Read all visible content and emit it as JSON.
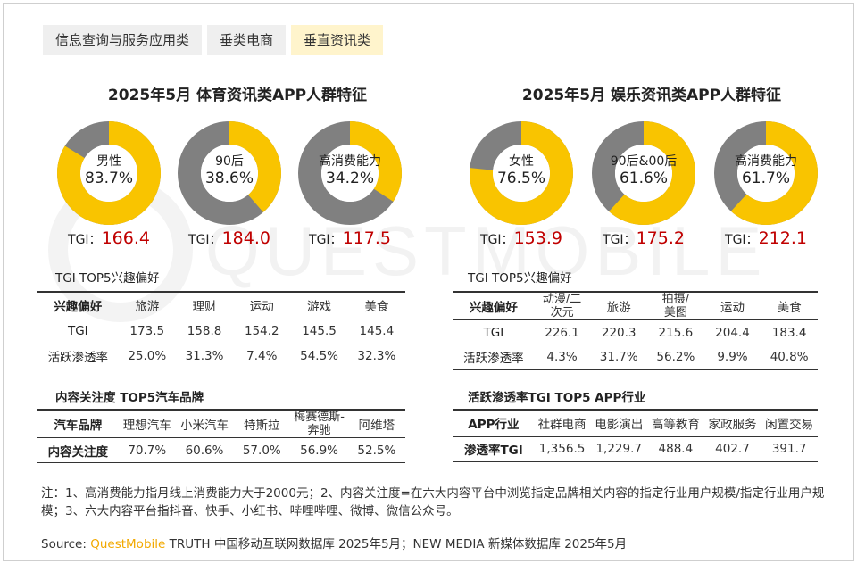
{
  "tabs": [
    "信息查询与服务应用类",
    "垂类电商",
    "垂直资讯类"
  ],
  "active_tab": 2,
  "colors": {
    "accent": "#f9c400",
    "grey": "#808080",
    "tgi_value": "#c00000",
    "brand": "#f2a900"
  },
  "watermark": "QUESTMOBILE",
  "chart_data": [
    {
      "type": "pie",
      "title": "2025年5月 体育资讯类APP人群特征",
      "donuts": [
        {
          "label": "男性",
          "value": 83.7,
          "value_label": "83.7%",
          "tgi_label": "TGI：",
          "tgi": "166.4"
        },
        {
          "label": "90后",
          "value": 38.6,
          "value_label": "38.6%",
          "tgi_label": "TGI：",
          "tgi": "184.0"
        },
        {
          "label": "高消费能力",
          "value": 34.2,
          "value_label": "34.2%",
          "tgi_label": "TGI：",
          "tgi": "117.5"
        }
      ]
    },
    {
      "type": "pie",
      "title": "2025年5月 娱乐资讯类APP人群特征",
      "donuts": [
        {
          "label": "女性",
          "value": 76.5,
          "value_label": "76.5%",
          "tgi_label": "TGI：",
          "tgi": "153.9"
        },
        {
          "label": "90后&00后",
          "value": 61.6,
          "value_label": "61.6%",
          "tgi_label": "TGI：",
          "tgi": "175.2"
        },
        {
          "label": "高消费能力",
          "value": 61.7,
          "value_label": "61.7%",
          "tgi_label": "TGI：",
          "tgi": "212.1"
        }
      ]
    },
    {
      "type": "table",
      "title": "TGI TOP5兴趣偏好",
      "header": [
        "兴趣偏好",
        "旅游",
        "理财",
        "运动",
        "游戏",
        "美食"
      ],
      "rows": [
        [
          "TGI",
          "173.5",
          "158.8",
          "154.2",
          "145.5",
          "145.4"
        ],
        [
          "活跃渗透率",
          "25.0%",
          "31.3%",
          "7.4%",
          "54.5%",
          "32.3%"
        ]
      ]
    },
    {
      "type": "table",
      "title": "内容关注度 TOP5汽车品牌",
      "header": [
        "汽车品牌",
        "理想汽车",
        "小米汽车",
        "特斯拉",
        "梅赛德斯-奔驰",
        "阿维塔"
      ],
      "rows": [
        [
          "内容关注度",
          "70.7%",
          "60.6%",
          "57.0%",
          "56.9%",
          "52.5%"
        ]
      ]
    },
    {
      "type": "table",
      "title": "TGI TOP5兴趣偏好",
      "header": [
        "兴趣偏好",
        "动漫/二次元",
        "旅游",
        "拍摄/美图",
        "运动",
        "美食"
      ],
      "rows": [
        [
          "TGI",
          "226.1",
          "220.3",
          "215.6",
          "204.4",
          "183.4"
        ],
        [
          "活跃渗透率",
          "4.3%",
          "31.7%",
          "56.2%",
          "9.9%",
          "40.8%"
        ]
      ]
    },
    {
      "type": "table",
      "title": "活跃渗透率TGI TOP5 APP行业",
      "header": [
        "APP行业",
        "社群电商",
        "电影演出",
        "高等教育",
        "家政服务",
        "闲置交易"
      ],
      "rows": [
        [
          "渗透率TGI",
          "1,356.5",
          "1,229.7",
          "488.4",
          "402.7",
          "391.7"
        ]
      ]
    }
  ],
  "left_tables": {
    "interest": {
      "title": "TGI TOP5兴趣偏好",
      "header": [
        "兴趣偏好",
        "旅游",
        "理财",
        "运动",
        "游戏",
        "美食"
      ],
      "rows": [
        [
          "TGI",
          "173.5",
          "158.8",
          "154.2",
          "145.5",
          "145.4"
        ],
        [
          "活跃渗透率",
          "25.0%",
          "31.3%",
          "7.4%",
          "54.5%",
          "32.3%"
        ]
      ]
    },
    "car": {
      "title": "内容关注度 TOP5汽车品牌",
      "header": [
        "汽车品牌",
        "理想汽车",
        "小米汽车",
        "特斯拉",
        "梅赛德斯-\n奔驰",
        "阿维塔"
      ],
      "rows": [
        [
          "内容关注度",
          "70.7%",
          "60.6%",
          "57.0%",
          "56.9%",
          "52.5%"
        ]
      ]
    }
  },
  "right_tables": {
    "interest": {
      "title": "TGI TOP5兴趣偏好",
      "header": [
        "兴趣偏好",
        "动漫/二\n次元",
        "旅游",
        "拍摄/\n美图",
        "运动",
        "美食"
      ],
      "rows": [
        [
          "TGI",
          "226.1",
          "220.3",
          "215.6",
          "204.4",
          "183.4"
        ],
        [
          "活跃渗透率",
          "4.3%",
          "31.7%",
          "56.2%",
          "9.9%",
          "40.8%"
        ]
      ]
    },
    "industry": {
      "title": "活跃渗透率TGI TOP5 APP行业",
      "header": [
        "APP行业",
        "社群电商",
        "电影演出",
        "高等教育",
        "家政服务",
        "闲置交易"
      ],
      "rows": [
        [
          "渗透率TGI",
          "1,356.5",
          "1,229.7",
          "488.4",
          "402.7",
          "391.7"
        ]
      ]
    }
  },
  "note": "注：1、高消费能力指月线上消费能力大于2000元；2、内容关注度=在六大内容平台中浏览指定品牌相关内容的指定行业用户规模/指定行业用户规模；3、六大内容平台指抖音、快手、小红书、哔哩哔哩、微博、微信公众号。",
  "source": {
    "prefix": "Source:",
    "brand": "QuestMobile",
    "rest": "TRUTH 中国移动互联网数据库 2025年5月；NEW MEDIA 新媒体数据库 2025年5月"
  }
}
